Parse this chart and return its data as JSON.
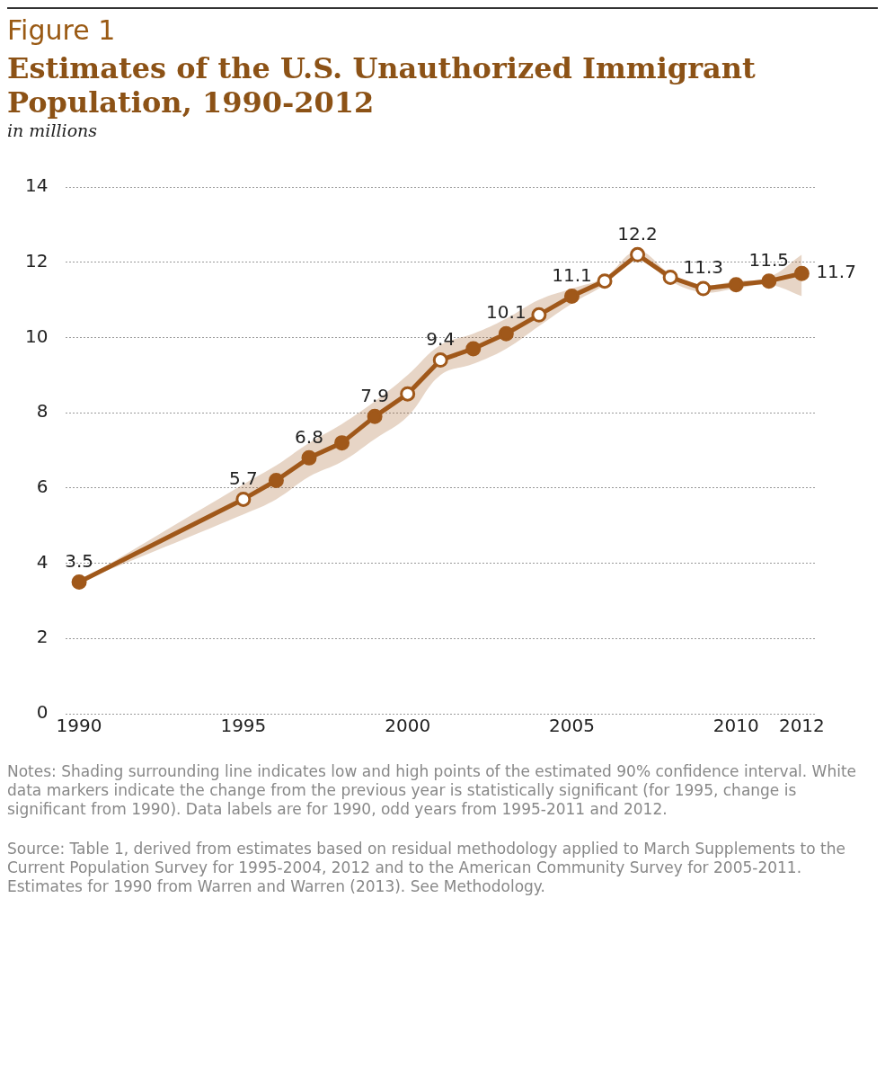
{
  "chart_data": {
    "type": "line",
    "title": "Estimates of the U.S. Unauthorized Immigrant Population, 1990-2012",
    "subtitle": "in millions",
    "annotations": [
      "Figure 1",
      "Notes: Shading surrounding line indicates low and high points of the estimated 90% confidence interval. White data markers indicate the change from the previous year is statistically significant (for 1995, change is significant from 1990). Data labels are for 1990, odd years from 1995-2011 and 2012.",
      "Source: Table 1, derived from estimates based on residual methodology applied to March Supplements to the Current Population Survey for 1995-2004, 2012 and to the American Community Survey for 2005-2011. Estimates for 1990 from Warren and Warren (2013). See Methodology."
    ],
    "x": [
      1990,
      1995,
      1996,
      1997,
      1998,
      1999,
      2000,
      2001,
      2002,
      2003,
      2004,
      2005,
      2006,
      2007,
      2008,
      2009,
      2010,
      2011,
      2012
    ],
    "series": [
      {
        "color": "#a0581a",
        "values": [
          3.5,
          5.7,
          6.2,
          6.8,
          7.2,
          7.9,
          8.5,
          9.4,
          9.7,
          10.1,
          10.6,
          11.1,
          11.5,
          12.2,
          11.6,
          11.3,
          11.4,
          11.5,
          11.7
        ],
        "lower": [
          3.5,
          5.3,
          5.7,
          6.3,
          6.7,
          7.3,
          7.9,
          9.0,
          9.3,
          9.7,
          10.3,
          10.9,
          11.4,
          12.1,
          11.5,
          11.2,
          11.3,
          11.4,
          11.1
        ],
        "upper": [
          3.5,
          6.1,
          6.6,
          7.2,
          7.7,
          8.3,
          9.0,
          9.8,
          10.1,
          10.5,
          11.0,
          11.3,
          11.6,
          12.3,
          11.7,
          11.4,
          11.5,
          11.6,
          12.2
        ],
        "colors": [
          "#a0581a",
          "#ffffff",
          "#a0581a",
          "#a0581a",
          "#a0581a",
          "#a0581a",
          "#ffffff",
          "#ffffff",
          "#a0581a",
          "#a0581a",
          "#ffffff",
          "#a0581a",
          "#ffffff",
          "#ffffff",
          "#ffffff",
          "#ffffff",
          "#a0581a",
          "#a0581a",
          "#a0581a"
        ],
        "value_labels": [
          "3.5",
          "5.7",
          null,
          "6.8",
          null,
          "7.9",
          null,
          "9.4",
          null,
          "10.1",
          null,
          "11.1",
          null,
          "12.2",
          null,
          "11.3",
          null,
          "11.5",
          "11.7"
        ]
      }
    ],
    "xlim": [
      1989.6,
      2012.4
    ],
    "xticks": [
      1990,
      1995,
      2000,
      2005,
      2010,
      2012
    ],
    "ylim": [
      0,
      14
    ],
    "yticks": [
      0,
      2,
      4,
      6,
      8,
      10,
      12,
      14
    ],
    "grid": "y",
    "legend": false,
    "marker": "circle",
    "line_style": "solid"
  }
}
